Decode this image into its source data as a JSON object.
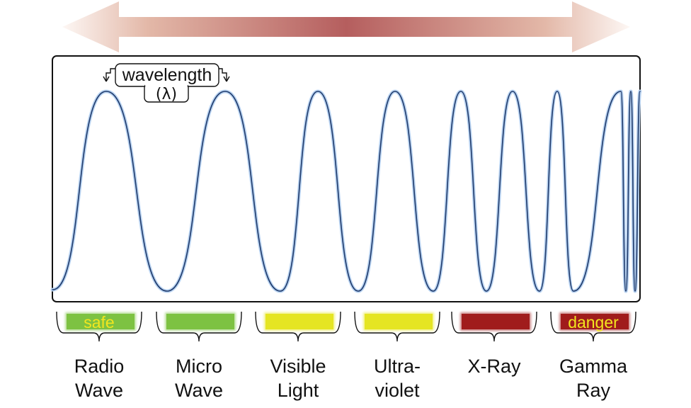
{
  "annotation": {
    "wavelength_label": "wavelength",
    "lambda_label": "(λ)"
  },
  "bands": [
    {
      "line1": "Radio",
      "line2": "Wave",
      "bar_color": "#7dc242",
      "bar_text": "safe",
      "bar_text_color": "#f2e61f"
    },
    {
      "line1": "Micro",
      "line2": "Wave",
      "bar_color": "#7dc242",
      "bar_text": "",
      "bar_text_color": ""
    },
    {
      "line1": "Visible",
      "line2": "Light",
      "bar_color": "#e5e523",
      "bar_text": "",
      "bar_text_color": ""
    },
    {
      "line1": "Ultra-",
      "line2": "violet",
      "bar_color": "#e5e523",
      "bar_text": "",
      "bar_text_color": ""
    },
    {
      "line1": "X-Ray",
      "line2": "",
      "bar_color": "#a01c1c",
      "bar_text": "",
      "bar_text_color": ""
    },
    {
      "line1": "Gamma",
      "line2": "Ray",
      "bar_color": "#a01c1c",
      "bar_text": "danger",
      "bar_text_color": "#f2e61f"
    }
  ],
  "colors": {
    "wave_stroke": "#1f3a6b",
    "wave_glow": "#9fc0ea",
    "arrow_center": "#b55e5e",
    "arrow_edge": "#f4e4dc",
    "frame": "#111111"
  }
}
